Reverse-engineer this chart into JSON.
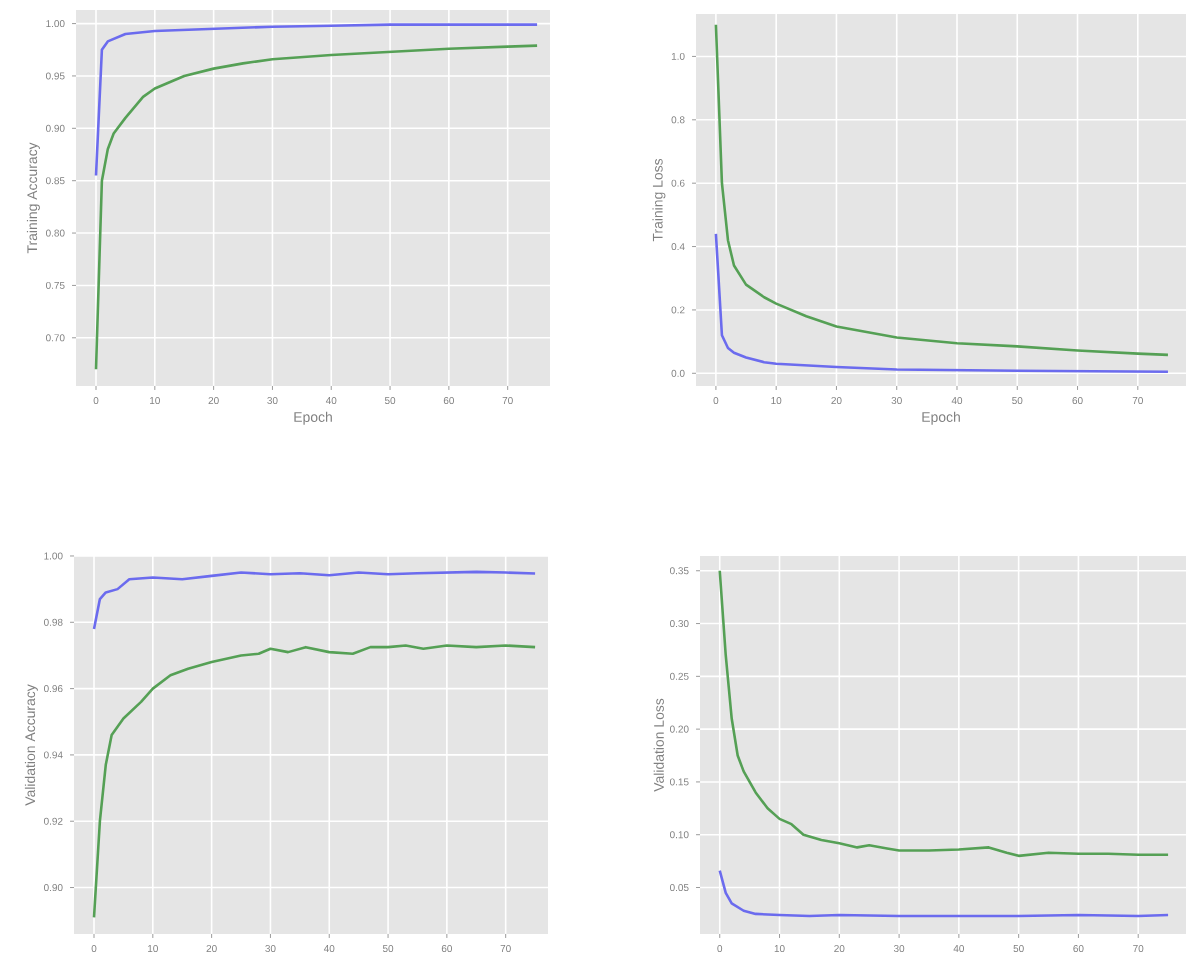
{
  "chart_data": [
    {
      "type": "line",
      "xlabel": "Epoch",
      "ylabel": "Training Accuracy",
      "xlim": [
        -3.4,
        77.2
      ],
      "ylim": [
        0.654,
        1.013
      ],
      "xticks": [
        0,
        10,
        20,
        30,
        40,
        50,
        60,
        70
      ],
      "yticks": [
        {
          "value": 0.7,
          "label": "0.70"
        },
        {
          "value": 0.75,
          "label": "0.75"
        },
        {
          "value": 0.8,
          "label": "0.80"
        },
        {
          "value": 0.85,
          "label": "0.85"
        },
        {
          "value": 0.9,
          "label": "0.90"
        },
        {
          "value": 0.95,
          "label": "0.95"
        },
        {
          "value": 1.0,
          "label": "1.00"
        }
      ],
      "grid": true,
      "series": [
        {
          "color": "#6b6bee",
          "x": [
            0,
            1,
            2,
            5,
            10,
            20,
            30,
            40,
            50,
            60,
            75
          ],
          "values": [
            0.855,
            0.975,
            0.983,
            0.99,
            0.993,
            0.995,
            0.997,
            0.998,
            0.999,
            0.999,
            0.999
          ]
        },
        {
          "color": "#55a055",
          "x": [
            0,
            1,
            2,
            3,
            5,
            8,
            10,
            15,
            20,
            25,
            30,
            40,
            50,
            60,
            70,
            75
          ],
          "values": [
            0.67,
            0.85,
            0.88,
            0.895,
            0.91,
            0.93,
            0.938,
            0.95,
            0.957,
            0.962,
            0.966,
            0.97,
            0.973,
            0.976,
            0.978,
            0.979
          ]
        }
      ]
    },
    {
      "type": "line",
      "xlabel": "Epoch",
      "ylabel": "Training Loss",
      "xlim": [
        -3.3,
        78
      ],
      "ylim": [
        -0.04,
        1.134
      ],
      "xticks": [
        0,
        10,
        20,
        30,
        40,
        50,
        60,
        70
      ],
      "yticks": [
        {
          "value": 0,
          "label": "0.0"
        },
        {
          "value": 0.2,
          "label": "0.2"
        },
        {
          "value": 0.4,
          "label": "0.4"
        },
        {
          "value": 0.6,
          "label": "0.6"
        },
        {
          "value": 0.8,
          "label": "0.8"
        },
        {
          "value": 1.0,
          "label": "1.0"
        }
      ],
      "grid": true,
      "series": [
        {
          "color": "#6b6bee",
          "x": [
            0,
            1,
            2,
            3,
            5,
            8,
            10,
            20,
            30,
            50,
            75
          ],
          "values": [
            0.44,
            0.12,
            0.08,
            0.065,
            0.05,
            0.035,
            0.03,
            0.02,
            0.012,
            0.008,
            0.005
          ]
        },
        {
          "color": "#55a055",
          "x": [
            0,
            1,
            2,
            3,
            5,
            8,
            10,
            15,
            20,
            30,
            40,
            50,
            60,
            70,
            75
          ],
          "values": [
            1.1,
            0.6,
            0.42,
            0.34,
            0.28,
            0.24,
            0.22,
            0.18,
            0.148,
            0.113,
            0.095,
            0.085,
            0.072,
            0.062,
            0.058
          ]
        }
      ]
    },
    {
      "type": "line",
      "ylabel": "Validation Accuracy",
      "xlim": [
        -3.4,
        77.2
      ],
      "ylim": [
        0.886,
        1.0
      ],
      "xticks": [
        0,
        10,
        20,
        30,
        40,
        50,
        60,
        70
      ],
      "yticks": [
        {
          "value": 0.9,
          "label": "0.90"
        },
        {
          "value": 0.92,
          "label": "0.92"
        },
        {
          "value": 0.94,
          "label": "0.94"
        },
        {
          "value": 0.96,
          "label": "0.96"
        },
        {
          "value": 0.98,
          "label": "0.98"
        },
        {
          "value": 1.0,
          "label": "1.00"
        }
      ],
      "grid": true,
      "series": [
        {
          "color": "#6b6bee",
          "x": [
            0,
            1,
            2,
            4,
            6,
            10,
            15,
            20,
            25,
            30,
            35,
            40,
            45,
            50,
            55,
            60,
            65,
            70,
            75
          ],
          "values": [
            0.978,
            0.987,
            0.989,
            0.99,
            0.993,
            0.9935,
            0.993,
            0.994,
            0.995,
            0.9945,
            0.9948,
            0.9942,
            0.995,
            0.9945,
            0.9948,
            0.995,
            0.9952,
            0.995,
            0.9947
          ]
        },
        {
          "color": "#55a055",
          "x": [
            0,
            1,
            2,
            3,
            5,
            8,
            10,
            13,
            16,
            20,
            25,
            28,
            30,
            33,
            36,
            40,
            44,
            47,
            50,
            53,
            56,
            60,
            65,
            70,
            75
          ],
          "values": [
            0.891,
            0.92,
            0.937,
            0.946,
            0.951,
            0.956,
            0.96,
            0.964,
            0.966,
            0.968,
            0.97,
            0.9705,
            0.972,
            0.971,
            0.9725,
            0.971,
            0.9705,
            0.9725,
            0.9725,
            0.973,
            0.972,
            0.973,
            0.9725,
            0.973,
            0.9725
          ]
        }
      ]
    },
    {
      "type": "line",
      "ylabel": "Validation Loss",
      "xlim": [
        -3.3,
        78
      ],
      "ylim": [
        0.006,
        0.364
      ],
      "xticks": [
        0,
        10,
        20,
        30,
        40,
        50,
        60,
        70
      ],
      "yticks": [
        {
          "value": 0.05,
          "label": "0.05"
        },
        {
          "value": 0.1,
          "label": "0.10"
        },
        {
          "value": 0.15,
          "label": "0.15"
        },
        {
          "value": 0.2,
          "label": "0.20"
        },
        {
          "value": 0.25,
          "label": "0.25"
        },
        {
          "value": 0.3,
          "label": "0.30"
        },
        {
          "value": 0.35,
          "label": "0.35"
        }
      ],
      "grid": true,
      "series": [
        {
          "color": "#6b6bee",
          "x": [
            0,
            1,
            2,
            4,
            6,
            10,
            15,
            20,
            30,
            40,
            50,
            60,
            70,
            75
          ],
          "values": [
            0.066,
            0.045,
            0.035,
            0.028,
            0.025,
            0.024,
            0.023,
            0.024,
            0.023,
            0.023,
            0.023,
            0.024,
            0.023,
            0.024
          ]
        },
        {
          "color": "#55a055",
          "x": [
            0,
            1,
            2,
            3,
            4,
            6,
            8,
            10,
            12,
            14,
            17,
            20,
            23,
            25,
            28,
            30,
            35,
            40,
            45,
            48,
            50,
            55,
            60,
            65,
            70,
            75
          ],
          "values": [
            0.35,
            0.27,
            0.21,
            0.175,
            0.16,
            0.14,
            0.125,
            0.115,
            0.11,
            0.1,
            0.095,
            0.092,
            0.088,
            0.09,
            0.087,
            0.085,
            0.085,
            0.086,
            0.088,
            0.083,
            0.08,
            0.083,
            0.082,
            0.082,
            0.081,
            0.081
          ]
        }
      ]
    }
  ]
}
